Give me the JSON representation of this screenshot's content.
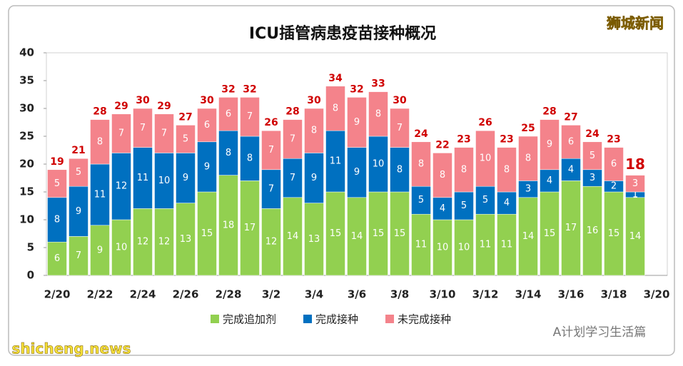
{
  "chart_data": {
    "type": "stacked-bar",
    "title": "ICU插管病患疫苗接种概况",
    "categories": [
      "2/20",
      null,
      "2/22",
      null,
      "2/24",
      null,
      "2/26",
      null,
      "2/28",
      null,
      "3/2",
      null,
      "3/4",
      null,
      "3/6",
      null,
      "3/8",
      null,
      "3/10",
      null,
      "3/12",
      null,
      "3/14",
      null,
      "3/16",
      null,
      "3/18",
      null,
      "3/20"
    ],
    "series": [
      {
        "name": "完成追加剂",
        "color": "#92d050",
        "values": [
          6,
          7,
          9,
          10,
          12,
          12,
          13,
          15,
          18,
          17,
          12,
          14,
          13,
          15,
          14,
          15,
          15,
          11,
          10,
          10,
          11,
          11,
          14,
          15,
          17,
          16,
          15,
          14,
          null
        ]
      },
      {
        "name": "完成接种",
        "color": "#0070c0",
        "values": [
          8,
          9,
          11,
          12,
          11,
          10,
          9,
          9,
          8,
          8,
          7,
          7,
          9,
          11,
          9,
          10,
          8,
          5,
          4,
          5,
          5,
          4,
          3,
          4,
          4,
          3,
          2,
          1,
          null
        ]
      },
      {
        "name": "未完成接种",
        "color": "#f4838b",
        "values": [
          5,
          5,
          8,
          7,
          7,
          7,
          5,
          6,
          6,
          7,
          7,
          7,
          8,
          8,
          9,
          8,
          7,
          8,
          8,
          8,
          10,
          8,
          8,
          9,
          6,
          5,
          6,
          3,
          null
        ]
      }
    ],
    "totals": [
      19,
      21,
      28,
      29,
      30,
      29,
      27,
      30,
      32,
      32,
      26,
      28,
      30,
      34,
      32,
      33,
      30,
      24,
      22,
      23,
      26,
      23,
      25,
      28,
      27,
      24,
      23,
      18,
      null
    ],
    "ylim": [
      0,
      40
    ],
    "yticks": [
      0,
      5,
      10,
      15,
      20,
      25,
      30,
      35,
      40
    ],
    "grid": false
  },
  "watermarks": [
    "狮城新闻",
    "A计划学习生活篇",
    "shicheng.news"
  ]
}
